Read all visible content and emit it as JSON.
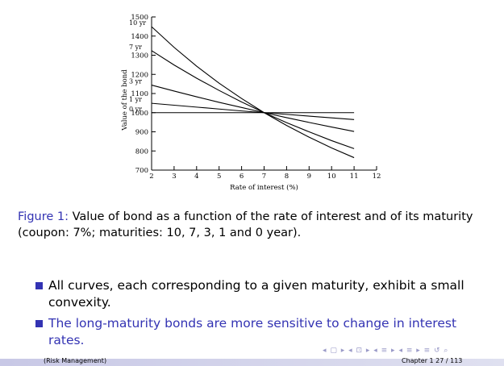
{
  "chart_data": {
    "type": "line",
    "xlabel": "Rate of interest (%)",
    "ylabel": "Value of the bond",
    "xlim": [
      2,
      12
    ],
    "ylim": [
      700,
      1500
    ],
    "xticks": [
      2,
      3,
      4,
      5,
      6,
      7,
      8,
      9,
      10,
      11,
      12
    ],
    "yticks": [
      700,
      800,
      900,
      1000,
      1100,
      1200,
      1300,
      1400,
      1500
    ],
    "grid": false,
    "series": [
      {
        "name": "10 yr",
        "x": [
          2,
          3,
          4,
          5,
          6,
          7,
          8,
          9,
          10,
          11
        ],
        "values": [
          1449,
          1341,
          1243,
          1154,
          1074,
          1000,
          933,
          872,
          816,
          765
        ]
      },
      {
        "name": "7 yr",
        "x": [
          2,
          3,
          4,
          5,
          6,
          7,
          8,
          9,
          10,
          11
        ],
        "values": [
          1324,
          1249,
          1180,
          1116,
          1056,
          1000,
          948,
          900,
          854,
          812
        ]
      },
      {
        "name": "3 yr",
        "x": [
          2,
          3,
          4,
          5,
          6,
          7,
          8,
          9,
          10,
          11
        ],
        "values": [
          1144,
          1113,
          1083,
          1054,
          1027,
          1000,
          974,
          949,
          925,
          902
        ]
      },
      {
        "name": "1 yr",
        "x": [
          2,
          3,
          4,
          5,
          6,
          7,
          8,
          9,
          10,
          11
        ],
        "values": [
          1049,
          1039,
          1029,
          1019,
          1009,
          1000,
          991,
          982,
          973,
          964
        ]
      },
      {
        "name": "0 yr",
        "x": [
          2,
          3,
          4,
          5,
          6,
          7,
          8,
          9,
          10,
          11
        ],
        "values": [
          1000,
          1000,
          1000,
          1000,
          1000,
          1000,
          1000,
          1000,
          1000,
          1000
        ]
      }
    ]
  },
  "caption": {
    "label": "Figure 1:",
    "text": "Value of bond as a function of the rate of interest and of its maturity (coupon: 7%; maturities: 10, 7, 3, 1 and 0 year)."
  },
  "bullets": [
    "All curves, each corresponding to a given maturity, exhibit a small convexity.",
    "The long-maturity bonds are more sensitive to change in interest rates."
  ],
  "footer": {
    "left": "(Risk Management)",
    "right": "Chapter 1     27 / 113"
  },
  "nav_symbols": "◂ ▢ ▸ ◂ ⊡ ▸ ◂ ≡ ▸ ◂ ≡ ▸  ≡  ↺ ⌕"
}
